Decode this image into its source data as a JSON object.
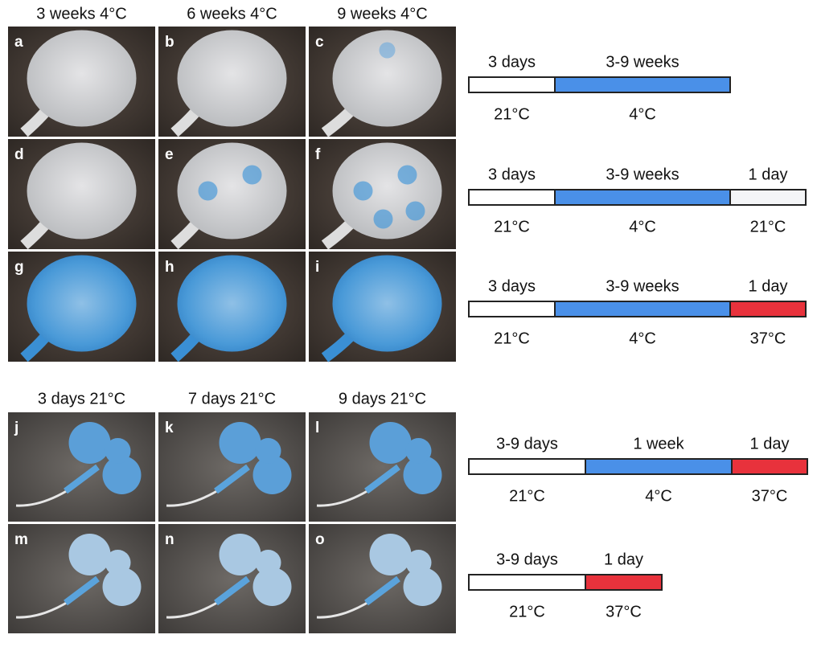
{
  "figure": {
    "top": {
      "headers": [
        "3 weeks 4°C",
        "6 weeks 4°C",
        "9 weeks 4°C"
      ],
      "panels": [
        [
          "a",
          "b",
          "c"
        ],
        [
          "d",
          "e",
          "f"
        ],
        [
          "g",
          "h",
          "i"
        ]
      ]
    },
    "bottom": {
      "headers": [
        "3 days 21°C",
        "7 days 21°C",
        "9 days 21°C"
      ],
      "panels": [
        [
          "j",
          "k",
          "l"
        ],
        [
          "m",
          "n",
          "o"
        ]
      ]
    },
    "timelines": [
      {
        "segments": [
          {
            "duration": "3 days",
            "temperature": "21°C",
            "color": "#ffffff"
          },
          {
            "duration": "3-9 weeks",
            "temperature": "4°C",
            "color": "#4a90e8"
          }
        ]
      },
      {
        "segments": [
          {
            "duration": "3 days",
            "temperature": "21°C",
            "color": "#ffffff"
          },
          {
            "duration": "3-9 weeks",
            "temperature": "4°C",
            "color": "#4a90e8"
          },
          {
            "duration": "1 day",
            "temperature": "21°C",
            "color": "#f4f5f7"
          }
        ]
      },
      {
        "segments": [
          {
            "duration": "3 days",
            "temperature": "21°C",
            "color": "#ffffff"
          },
          {
            "duration": "3-9 weeks",
            "temperature": "4°C",
            "color": "#4a90e8"
          },
          {
            "duration": "1 day",
            "temperature": "37°C",
            "color": "#e8323c"
          }
        ]
      },
      {
        "segments": [
          {
            "duration": "3-9 days",
            "temperature": "21°C",
            "color": "#ffffff"
          },
          {
            "duration": "1 week",
            "temperature": "4°C",
            "color": "#4a90e8"
          },
          {
            "duration": "1 day",
            "temperature": "37°C",
            "color": "#e8323c"
          }
        ]
      },
      {
        "segments": [
          {
            "duration": "3-9 days",
            "temperature": "21°C",
            "color": "#ffffff"
          },
          {
            "duration": "1 day",
            "temperature": "37°C",
            "color": "#e8323c"
          }
        ]
      }
    ]
  }
}
